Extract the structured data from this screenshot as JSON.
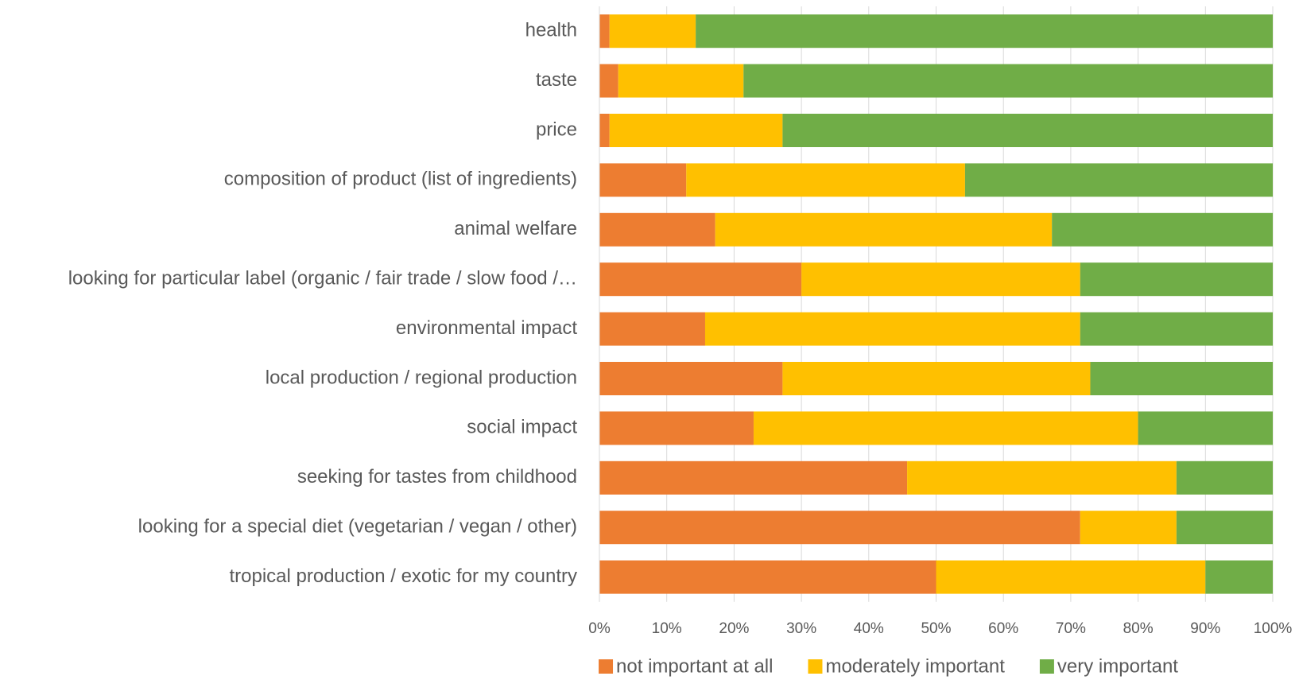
{
  "chart_data": {
    "type": "stacked_bar_horizontal",
    "categories": [
      "health",
      "taste",
      "price",
      "composition of product (list of ingredients)",
      "animal welfare",
      "looking for particular label (organic / fair trade / slow food /…",
      "environmental impact",
      "local production / regional production",
      "social impact",
      "seeking for tastes from childhood",
      "looking for a special diet (vegetarian / vegan / other)",
      "tropical production / exotic for my country"
    ],
    "series": [
      {
        "name": "not important at all",
        "color": "#ed7d31",
        "values": [
          1.5,
          2.8,
          1.5,
          12.9,
          17.2,
          30,
          15.7,
          27.2,
          22.9,
          45.7,
          71.4,
          50
        ]
      },
      {
        "name": "moderately important",
        "color": "#ffc000",
        "values": [
          12.8,
          18.6,
          25.7,
          41.4,
          50,
          41.4,
          55.7,
          45.7,
          57.1,
          40,
          14.3,
          40
        ]
      },
      {
        "name": "very important",
        "color": "#70ad47",
        "values": [
          85.7,
          78.6,
          72.8,
          45.7,
          32.8,
          28.6,
          28.6,
          27.1,
          20,
          14.3,
          14.3,
          10
        ]
      }
    ],
    "xlim": [
      0,
      100
    ],
    "xticks": [
      {
        "value": 0,
        "label": "0%"
      },
      {
        "value": 10,
        "label": "10%"
      },
      {
        "value": 20,
        "label": "20%"
      },
      {
        "value": 30,
        "label": "30%"
      },
      {
        "value": 40,
        "label": "40%"
      },
      {
        "value": 50,
        "label": "50%"
      },
      {
        "value": 60,
        "label": "60%"
      },
      {
        "value": 70,
        "label": "70%"
      },
      {
        "value": 80,
        "label": "80%"
      },
      {
        "value": 90,
        "label": "90%"
      },
      {
        "value": 100,
        "label": "100%"
      }
    ],
    "grid": true,
    "legend": "bottom"
  }
}
